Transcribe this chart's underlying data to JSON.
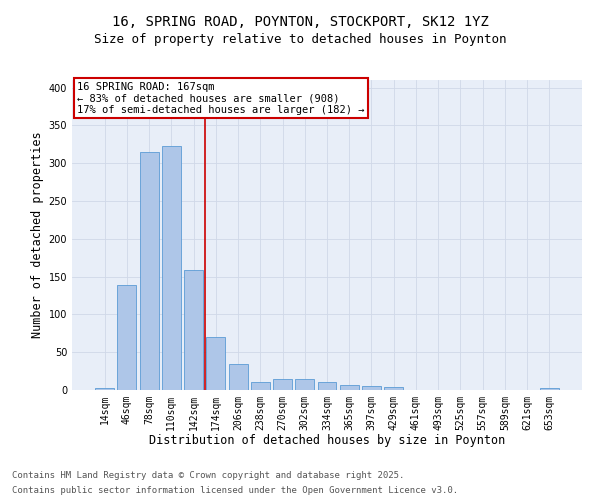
{
  "title_line1": "16, SPRING ROAD, POYNTON, STOCKPORT, SK12 1YZ",
  "title_line2": "Size of property relative to detached houses in Poynton",
  "xlabel": "Distribution of detached houses by size in Poynton",
  "ylabel": "Number of detached properties",
  "categories": [
    "14sqm",
    "46sqm",
    "78sqm",
    "110sqm",
    "142sqm",
    "174sqm",
    "206sqm",
    "238sqm",
    "270sqm",
    "302sqm",
    "334sqm",
    "365sqm",
    "397sqm",
    "429sqm",
    "461sqm",
    "493sqm",
    "525sqm",
    "557sqm",
    "589sqm",
    "621sqm",
    "653sqm"
  ],
  "values": [
    3,
    139,
    315,
    323,
    159,
    70,
    35,
    11,
    14,
    14,
    11,
    7,
    5,
    4,
    0,
    0,
    0,
    0,
    0,
    0,
    2
  ],
  "bar_color": "#aec6e8",
  "bar_edge_color": "#5b9bd5",
  "vline_x": 5,
  "vline_color": "#cc0000",
  "annotation_text": "16 SPRING ROAD: 167sqm\n← 83% of detached houses are smaller (908)\n17% of semi-detached houses are larger (182) →",
  "annotation_box_color": "#cc0000",
  "ylim": [
    0,
    410
  ],
  "yticks": [
    0,
    50,
    100,
    150,
    200,
    250,
    300,
    350,
    400
  ],
  "grid_color": "#d0d8e8",
  "bg_color": "#e8eef8",
  "footer_line1": "Contains HM Land Registry data © Crown copyright and database right 2025.",
  "footer_line2": "Contains public sector information licensed under the Open Government Licence v3.0.",
  "title_fontsize": 10,
  "subtitle_fontsize": 9,
  "axis_label_fontsize": 8.5,
  "tick_fontsize": 7,
  "annotation_fontsize": 7.5,
  "footer_fontsize": 6.5
}
